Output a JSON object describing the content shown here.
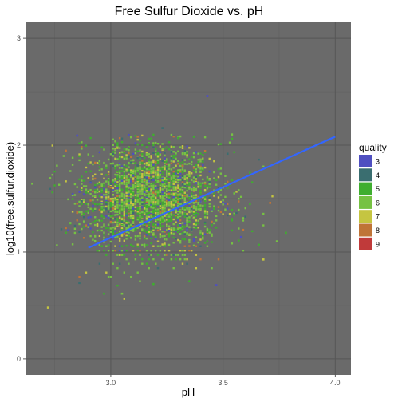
{
  "chart_data": {
    "type": "scatter",
    "title": "Free Sulfur Dioxide vs. pH",
    "xlabel": "pH",
    "ylabel": "log10(free.sulfur.dioxide)",
    "xlim": [
      2.62,
      4.07
    ],
    "ylim": [
      -0.15,
      3.15
    ],
    "x_ticks": [
      3.0,
      3.5,
      4.0
    ],
    "x_tick_labels": [
      "3.0",
      "3.5",
      "4.0"
    ],
    "y_ticks": [
      0,
      1,
      2,
      3
    ],
    "y_tick_labels": [
      "0",
      "1",
      "2",
      "3"
    ],
    "panel_background": "#6a6a6a",
    "grid": true,
    "legend": {
      "title": "quality",
      "position": "right",
      "entries": [
        {
          "label": "3",
          "color": "#4f4fc0"
        },
        {
          "label": "4",
          "color": "#3a6e70"
        },
        {
          "label": "5",
          "color": "#3fae2f"
        },
        {
          "label": "6",
          "color": "#76c243"
        },
        {
          "label": "7",
          "color": "#c5c541"
        },
        {
          "label": "8",
          "color": "#bf7437"
        },
        {
          "label": "9",
          "color": "#c03a3a"
        }
      ]
    },
    "trend_line": {
      "color": "#3366ff",
      "x": [
        2.9,
        4.0
      ],
      "y": [
        1.04,
        2.08
      ]
    },
    "point_density": {
      "x_center": 3.18,
      "x_sd": 0.15,
      "y_center": 1.5,
      "y_sd": 0.25,
      "x_min": 2.72,
      "x_max": 3.82,
      "y_min": 0.45,
      "y_max": 2.1
    },
    "outliers": [
      {
        "x": 3.43,
        "y": 2.46,
        "quality": "3"
      },
      {
        "x": 2.85,
        "y": 2.09,
        "quality": "3"
      },
      {
        "x": 3.23,
        "y": 2.16,
        "quality": "4"
      },
      {
        "x": 3.54,
        "y": 2.1,
        "quality": "6"
      },
      {
        "x": 3.54,
        "y": 2.06,
        "quality": "5"
      },
      {
        "x": 3.12,
        "y": 2.08,
        "quality": "8"
      },
      {
        "x": 2.72,
        "y": 0.48,
        "quality": "7"
      },
      {
        "x": 2.97,
        "y": 0.61,
        "quality": "5"
      },
      {
        "x": 3.05,
        "y": 0.61,
        "quality": "6"
      },
      {
        "x": 3.47,
        "y": 0.69,
        "quality": "3"
      },
      {
        "x": 2.86,
        "y": 0.71,
        "quality": "4"
      },
      {
        "x": 3.19,
        "y": 0.7,
        "quality": "5"
      },
      {
        "x": 3.68,
        "y": 0.93,
        "quality": "7"
      },
      {
        "x": 3.74,
        "y": 1.1,
        "quality": "6"
      },
      {
        "x": 3.78,
        "y": 1.18,
        "quality": "5"
      },
      {
        "x": 2.65,
        "y": 1.64,
        "quality": "6"
      },
      {
        "x": 3.52,
        "y": 1.92,
        "quality": "4"
      },
      {
        "x": 3.08,
        "y": 1.98,
        "quality": "5"
      },
      {
        "x": 3.71,
        "y": 1.46,
        "quality": "8"
      },
      {
        "x": 3.6,
        "y": 1.33,
        "quality": "4"
      }
    ]
  }
}
